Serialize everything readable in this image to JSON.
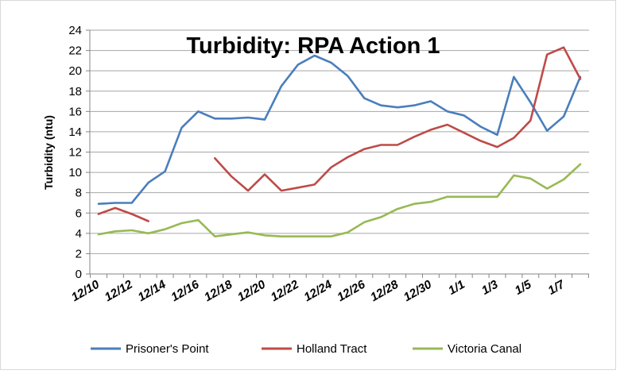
{
  "chart_data": {
    "type": "line",
    "title": "Turbidity: RPA Action 1",
    "xlabel": "",
    "ylabel": "Turbidity (ntu)",
    "ylim": [
      0,
      24
    ],
    "yticks": [
      0,
      2,
      4,
      6,
      8,
      10,
      12,
      14,
      16,
      18,
      20,
      22,
      24
    ],
    "x_tick_labels": [
      "12/10",
      "12/12",
      "12/14",
      "12/16",
      "12/18",
      "12/20",
      "12/22",
      "12/24",
      "12/26",
      "12/28",
      "12/30",
      "1/1",
      "1/3",
      "1/5",
      "1/7"
    ],
    "grid": true,
    "legend_position": "bottom",
    "x": [
      "12/10",
      "12/11",
      "12/12",
      "12/13",
      "12/14",
      "12/15",
      "12/16",
      "12/17",
      "12/18",
      "12/19",
      "12/20",
      "12/21",
      "12/22",
      "12/23",
      "12/24",
      "12/25",
      "12/26",
      "12/27",
      "12/28",
      "12/29",
      "12/30",
      "12/31",
      "1/1",
      "1/2",
      "1/3",
      "1/4",
      "1/5",
      "1/6",
      "1/7",
      "1/8"
    ],
    "series": [
      {
        "name": "Prisoner's Point",
        "color": "#4a7ebb",
        "values": [
          6.9,
          7.0,
          7.0,
          9.0,
          10.1,
          14.4,
          16.0,
          15.3,
          15.3,
          15.4,
          15.2,
          18.5,
          20.6,
          21.5,
          20.8,
          19.5,
          17.3,
          16.6,
          16.4,
          16.6,
          17.0,
          16.0,
          15.6,
          14.5,
          13.7,
          19.4,
          16.9,
          14.1,
          15.5,
          19.4
        ]
      },
      {
        "name": "Holland Tract",
        "color": "#be4b48",
        "values": [
          5.9,
          6.5,
          5.9,
          5.2,
          null,
          null,
          null,
          11.4,
          9.6,
          8.2,
          9.8,
          8.2,
          8.5,
          8.8,
          10.5,
          11.5,
          12.3,
          12.7,
          12.7,
          13.5,
          14.2,
          14.7,
          13.9,
          13.1,
          12.5,
          13.4,
          15.1,
          21.6,
          22.3,
          19.2
        ]
      },
      {
        "name": "Victoria Canal",
        "color": "#98b954",
        "values": [
          3.9,
          4.2,
          4.3,
          4.0,
          4.4,
          5.0,
          5.3,
          3.7,
          3.9,
          4.1,
          3.8,
          3.7,
          3.7,
          3.7,
          3.7,
          4.1,
          5.1,
          5.6,
          6.4,
          6.9,
          7.1,
          7.6,
          7.6,
          7.6,
          7.6,
          9.7,
          9.4,
          8.4,
          9.3,
          10.8
        ]
      }
    ]
  }
}
